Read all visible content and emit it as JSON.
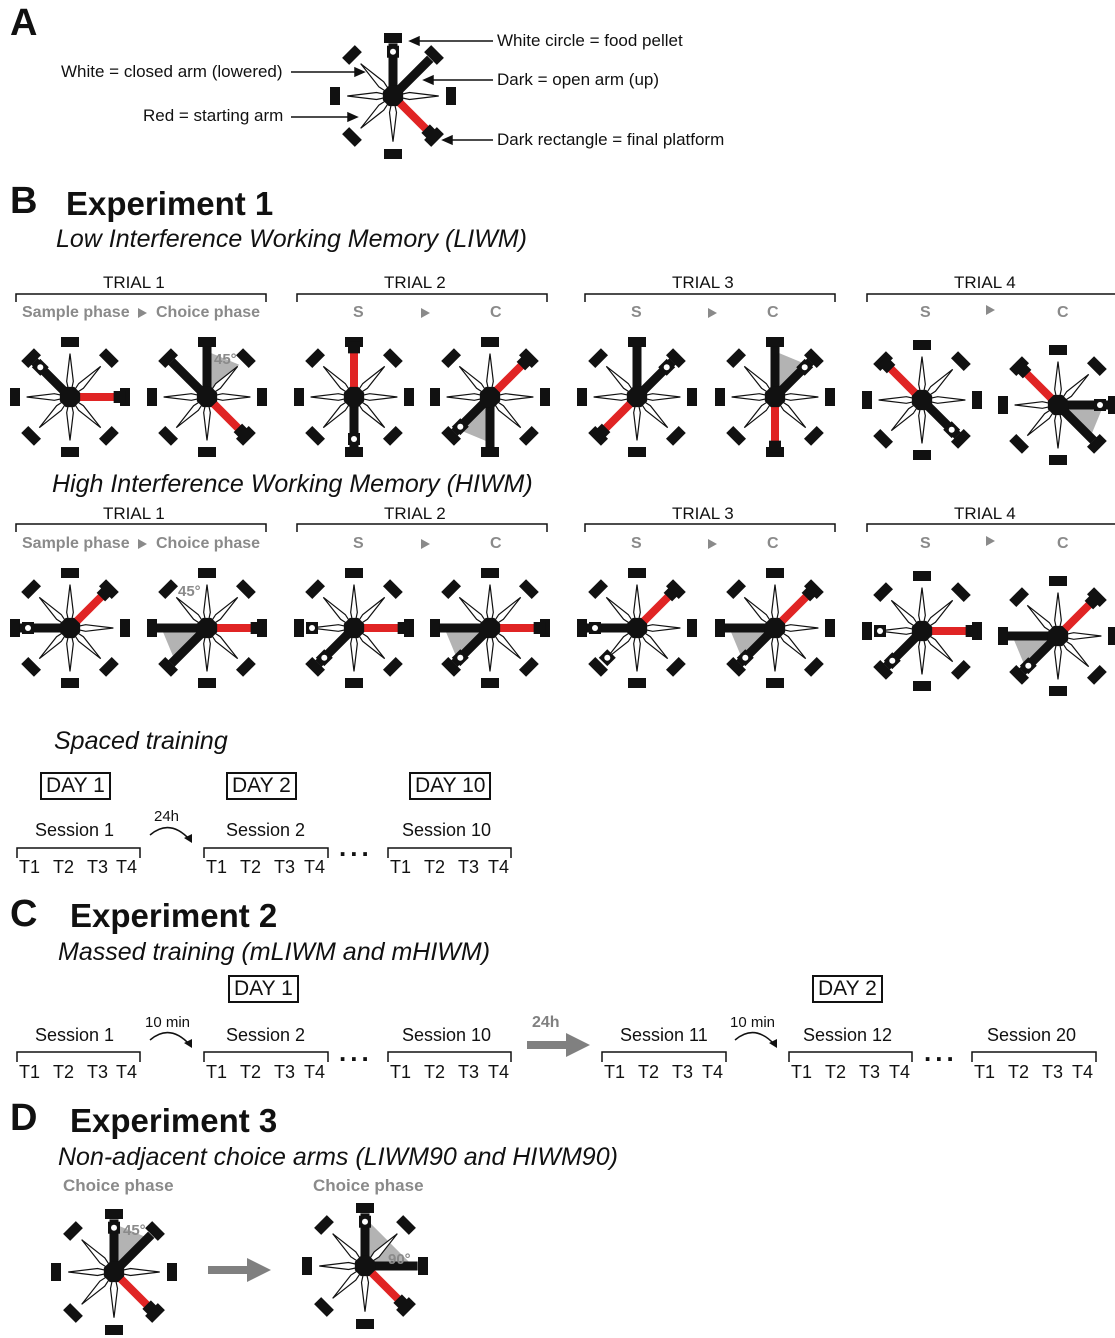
{
  "panelA": {
    "letter": "A",
    "labels": {
      "food": "White circle = food pellet",
      "closed": "White = closed arm (lowered)",
      "open": "Dark = open arm (up)",
      "start": "Red = starting arm",
      "platform": "Dark rectangle = final platform"
    }
  },
  "panelB": {
    "letter": "B",
    "title": "Experiment 1",
    "liwm_title": "Low Interference Working Memory (LIWM)",
    "hiwm_title": "High Interference Working Memory (HIWM)",
    "trials": [
      "TRIAL 1",
      "TRIAL 2",
      "TRIAL 3",
      "TRIAL 4"
    ],
    "sample_phase": "Sample phase",
    "choice_phase": "Choice phase",
    "s": "S",
    "c": "C",
    "angle45": "45°",
    "spaced_title": "Spaced training",
    "days": [
      "DAY 1",
      "DAY 2",
      "DAY 10"
    ],
    "sessions": [
      "Session 1",
      "Session 2",
      "Session 10"
    ],
    "interval": "24h"
  },
  "panelC": {
    "letter": "C",
    "title": "Experiment 2",
    "subtitle": "Massed training (mLIWM and mHIWM)",
    "days": [
      "DAY 1",
      "DAY 2"
    ],
    "sessions": [
      "Session 1",
      "Session 2",
      "Session 10",
      "Session 11",
      "Session 12",
      "Session 20"
    ],
    "interval": "10 min",
    "day_gap": "24h"
  },
  "panelD": {
    "letter": "D",
    "title": "Experiment 3",
    "subtitle": "Non-adjacent choice arms (LIWM90 and HIWM90)",
    "choice_phase": "Choice phase",
    "angle45": "45°",
    "angle90": "90°"
  },
  "trial_labels": [
    "T1",
    "T2",
    "T3",
    "T4"
  ],
  "ellipsis": "...",
  "colors": {
    "start": "#e02424",
    "open": "#111111",
    "closed": "#ffffff",
    "shade": "#b3b3b3",
    "muted": "#8a8a8a"
  },
  "mazes": {
    "legend": {
      "start": 135,
      "open": [
        0,
        45
      ],
      "food": [
        0
      ],
      "shade": null,
      "platforms": "diag"
    },
    "liwm_t1s": {
      "start": 90,
      "open": [
        315
      ],
      "food": [
        315
      ],
      "shade": null,
      "platforms": "card"
    },
    "liwm_t1c": {
      "start": 135,
      "open": [
        0,
        315
      ],
      "food": [],
      "shade": [
        0,
        45
      ],
      "platforms": "card"
    },
    "liwm_t2s": {
      "start": 0,
      "open": [
        180
      ],
      "food": [
        180
      ],
      "shade": null,
      "platforms": "card"
    },
    "liwm_t2c": {
      "start": 45,
      "open": [
        180,
        225
      ],
      "food": [
        225
      ],
      "shade": [
        180,
        225
      ],
      "platforms": "card"
    },
    "liwm_t3s": {
      "start": 225,
      "open": [
        0,
        45
      ],
      "food": [
        45
      ],
      "shade": null,
      "platforms": "card"
    },
    "liwm_t3c": {
      "start": 180,
      "open": [
        0,
        45
      ],
      "food": [
        45
      ],
      "shade": [
        0,
        45
      ],
      "platforms": "card"
    },
    "liwm_t4s": {
      "start": 315,
      "open": [
        135
      ],
      "food": [
        135
      ],
      "shade": null,
      "platforms": "card"
    },
    "liwm_t4c": {
      "start": 315,
      "open": [
        90,
        135
      ],
      "food": [
        90
      ],
      "shade": [
        90,
        135
      ],
      "platforms": "card"
    },
    "hiwm_t1s": {
      "start": 45,
      "open": [
        270
      ],
      "food": [
        270
      ],
      "shade": null,
      "platforms": "card"
    },
    "hiwm_t1c": {
      "start": 90,
      "open": [
        270,
        225
      ],
      "food": [],
      "shade": [
        225,
        270
      ],
      "platforms": "card"
    },
    "hiwm_t2s": {
      "start": 90,
      "open": [
        225
      ],
      "food": [
        225,
        270
      ],
      "shade": null,
      "platforms": "card"
    },
    "hiwm_t2c": {
      "start": 90,
      "open": [
        270,
        225
      ],
      "food": [
        225
      ],
      "shade": [
        225,
        270
      ],
      "platforms": "card"
    },
    "hiwm_t3s": {
      "start": 45,
      "open": [
        270
      ],
      "food": [
        225,
        270
      ],
      "shade": null,
      "platforms": "card"
    },
    "hiwm_t3c": {
      "start": 45,
      "open": [
        270,
        225
      ],
      "food": [
        225
      ],
      "shade": [
        225,
        270
      ],
      "platforms": "card"
    },
    "hiwm_t4s": {
      "start": 90,
      "open": [
        225
      ],
      "food": [
        225,
        270
      ],
      "shade": null,
      "platforms": "card"
    },
    "hiwm_t4c": {
      "start": 45,
      "open": [
        270,
        225
      ],
      "food": [
        225
      ],
      "shade": [
        225,
        270
      ],
      "platforms": "card"
    },
    "d_45": {
      "start": 135,
      "open": [
        0,
        45
      ],
      "food": [
        0
      ],
      "shade": [
        0,
        45
      ],
      "platforms": "diag"
    },
    "d_90": {
      "start": 135,
      "open": [
        0,
        90
      ],
      "food": [
        0
      ],
      "shade": [
        0,
        90
      ],
      "platforms": "diag"
    }
  }
}
